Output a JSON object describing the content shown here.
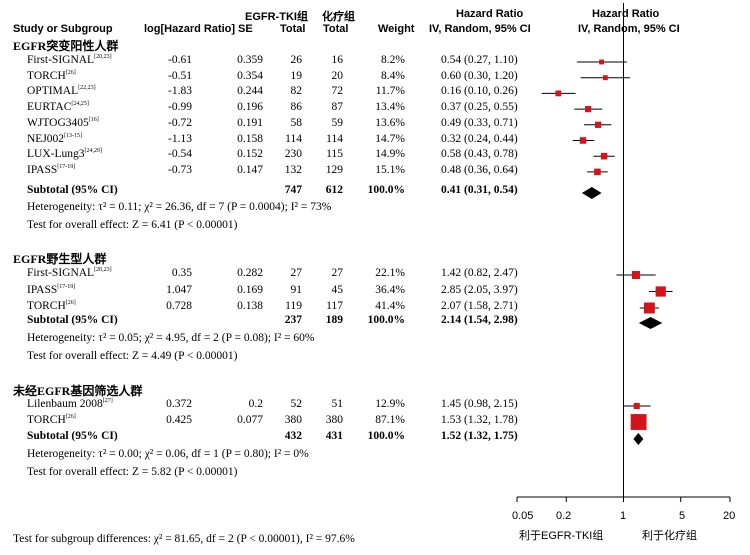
{
  "headers": {
    "study": "Study or Subgroup",
    "loghr": "log[Hazard Ratio]",
    "se": "SE",
    "egfr_group": "EGFR-TKI组",
    "egfr_total": "Total",
    "chemo_group": "化疗组",
    "chemo_total": "Total",
    "weight": "Weight",
    "hr_left_title": "Hazard Ratio",
    "hr_left_sub": "IV, Random, 95% CI",
    "hr_right_title": "Hazard Ratio",
    "hr_right_sub": "IV, Random, 95% CI"
  },
  "groups": [
    {
      "title": "EGFR突变阳性人群",
      "studies": [
        {
          "name": "First-SIGNAL",
          "ref": "[20,23]",
          "loghr": "-0.61",
          "se": "0.359",
          "t1": "26",
          "t2": "16",
          "weight": "8.2%",
          "ci": "0.54 (0.27, 1.10)"
        },
        {
          "name": "TORCH",
          "ref": "[26]",
          "loghr": "-0.51",
          "se": "0.354",
          "t1": "19",
          "t2": "20",
          "weight": "8.4%",
          "ci": "0.60 (0.30, 1.20)"
        },
        {
          "name": "OPTIMAL",
          "ref": "[22,23]",
          "loghr": "-1.83",
          "se": "0.244",
          "t1": "82",
          "t2": "72",
          "weight": "11.7%",
          "ci": "0.16 (0.10, 0.26)"
        },
        {
          "name": "EURTAC",
          "ref": "[24,25]",
          "loghr": "-0.99",
          "se": "0.196",
          "t1": "86",
          "t2": "87",
          "weight": "13.4%",
          "ci": "0.37 (0.25, 0.55)"
        },
        {
          "name": "WJTOG3405",
          "ref": "[16]",
          "loghr": "-0.72",
          "se": "0.191",
          "t1": "58",
          "t2": "59",
          "weight": "13.6%",
          "ci": "0.49 (0.33, 0.71)"
        },
        {
          "name": "NEJ002",
          "ref": "[13-15]",
          "loghr": "-1.13",
          "se": "0.158",
          "t1": "114",
          "t2": "114",
          "weight": "14.7%",
          "ci": "0.32 (0.24, 0.44)"
        },
        {
          "name": "LUX-Lung3",
          "ref": "[24,29]",
          "loghr": "-0.54",
          "se": "0.152",
          "t1": "230",
          "t2": "115",
          "weight": "14.9%",
          "ci": "0.58 (0.43, 0.78)"
        },
        {
          "name": "IPASS",
          "ref": "[17-19]",
          "loghr": "-0.73",
          "se": "0.147",
          "t1": "132",
          "t2": "129",
          "weight": "15.1%",
          "ci": "0.48 (0.36, 0.64)"
        }
      ],
      "subtotal": {
        "label": "Subtotal (95% CI)",
        "t1": "747",
        "t2": "612",
        "weight": "100.0%",
        "ci": "0.41 (0.31, 0.54)"
      },
      "heterogeneity": "Heterogeneity: τ² = 0.11; χ² = 26.36, df = 7 (P = 0.0004); I² = 73%",
      "overall": "Test for overall effect: Z = 6.41 (P < 0.00001)"
    },
    {
      "title": "EGFR野生型人群",
      "studies": [
        {
          "name": "First-SIGNAL",
          "ref": "[20,23]",
          "loghr": "0.35",
          "se": "0.282",
          "t1": "27",
          "t2": "27",
          "weight": "22.1%",
          "ci": "1.42 (0.82, 2.47)"
        },
        {
          "name": "IPASS",
          "ref": "[17-19]",
          "loghr": "1.047",
          "se": "0.169",
          "t1": "91",
          "t2": "45",
          "weight": "36.4%",
          "ci": "2.85 (2.05, 3.97)"
        },
        {
          "name": "TORCH",
          "ref": "[26]",
          "loghr": "0.728",
          "se": "0.138",
          "t1": "119",
          "t2": "117",
          "weight": "41.4%",
          "ci": "2.07 (1.58, 2.71)"
        }
      ],
      "subtotal": {
        "label": "Subtotal (95% CI)",
        "t1": "237",
        "t2": "189",
        "weight": "100.0%",
        "ci": "2.14 (1.54, 2.98)"
      },
      "heterogeneity": "Heterogeneity: τ² = 0.05; χ² = 4.95, df = 2 (P = 0.08); I² = 60%",
      "overall": "Test for overall effect: Z = 4.49 (P < 0.00001)"
    },
    {
      "title": "未经EGFR基因筛选人群",
      "studies": [
        {
          "name": "Lilenbaum 2008",
          "ref": "[27]",
          "loghr": "0.372",
          "se": "0.2",
          "t1": "52",
          "t2": "51",
          "weight": "12.9%",
          "ci": "1.45 (0.98, 2.15)"
        },
        {
          "name": "TORCH",
          "ref": "[26]",
          "loghr": "0.425",
          "se": "0.077",
          "t1": "380",
          "t2": "380",
          "weight": "87.1%",
          "ci": "1.53 (1.32, 1.78)"
        }
      ],
      "subtotal": {
        "label": "Subtotal (95% CI)",
        "t1": "432",
        "t2": "431",
        "weight": "100.0%",
        "ci": "1.52 (1.32, 1.75)"
      },
      "heterogeneity": "Heterogeneity: τ² = 0.00; χ² = 0.06, df = 1 (P = 0.80); I² = 0%",
      "overall": "Test for overall effect: Z = 5.82 (P < 0.00001)"
    }
  ],
  "subgroup_test": "Test for subgroup differences: χ² = 81.65, df = 2 (P < 0.00001), I² = 97.6%",
  "axis": {
    "ticks": [
      "0.05",
      "0.2",
      "1",
      "5",
      "20"
    ],
    "left_label": "利于EGFR-TKI组",
    "right_label": "利于化疗组"
  },
  "colors": {
    "study_marker": "#d3141b",
    "diamond": "#000000",
    "axis": "#000000"
  },
  "chart_data": {
    "type": "forest",
    "scale": "log",
    "xlim": [
      0.05,
      20
    ],
    "reference_line": 1,
    "groups": [
      {
        "name": "EGFR突变阳性人群",
        "points": [
          {
            "study": "First-SIGNAL",
            "hr": 0.54,
            "lo": 0.27,
            "hi": 1.1,
            "weight": 8.2
          },
          {
            "study": "TORCH",
            "hr": 0.6,
            "lo": 0.3,
            "hi": 1.2,
            "weight": 8.4
          },
          {
            "study": "OPTIMAL",
            "hr": 0.16,
            "lo": 0.1,
            "hi": 0.26,
            "weight": 11.7
          },
          {
            "study": "EURTAC",
            "hr": 0.37,
            "lo": 0.25,
            "hi": 0.55,
            "weight": 13.4
          },
          {
            "study": "WJTOG3405",
            "hr": 0.49,
            "lo": 0.33,
            "hi": 0.71,
            "weight": 13.6
          },
          {
            "study": "NEJ002",
            "hr": 0.32,
            "lo": 0.24,
            "hi": 0.44,
            "weight": 14.7
          },
          {
            "study": "LUX-Lung3",
            "hr": 0.58,
            "lo": 0.43,
            "hi": 0.78,
            "weight": 14.9
          },
          {
            "study": "IPASS",
            "hr": 0.48,
            "lo": 0.36,
            "hi": 0.64,
            "weight": 15.1
          }
        ],
        "subtotal": {
          "hr": 0.41,
          "lo": 0.31,
          "hi": 0.54
        }
      },
      {
        "name": "EGFR野生型人群",
        "points": [
          {
            "study": "First-SIGNAL",
            "hr": 1.42,
            "lo": 0.82,
            "hi": 2.47,
            "weight": 22.1
          },
          {
            "study": "IPASS",
            "hr": 2.85,
            "lo": 2.05,
            "hi": 3.97,
            "weight": 36.4
          },
          {
            "study": "TORCH",
            "hr": 2.07,
            "lo": 1.58,
            "hi": 2.71,
            "weight": 41.4
          }
        ],
        "subtotal": {
          "hr": 2.14,
          "lo": 1.54,
          "hi": 2.98
        }
      },
      {
        "name": "未经EGFR基因筛选人群",
        "points": [
          {
            "study": "Lilenbaum 2008",
            "hr": 1.45,
            "lo": 0.98,
            "hi": 2.15,
            "weight": 12.9
          },
          {
            "study": "TORCH",
            "hr": 1.53,
            "lo": 1.32,
            "hi": 1.78,
            "weight": 87.1
          }
        ],
        "subtotal": {
          "hr": 1.52,
          "lo": 1.32,
          "hi": 1.75
        }
      }
    ]
  }
}
